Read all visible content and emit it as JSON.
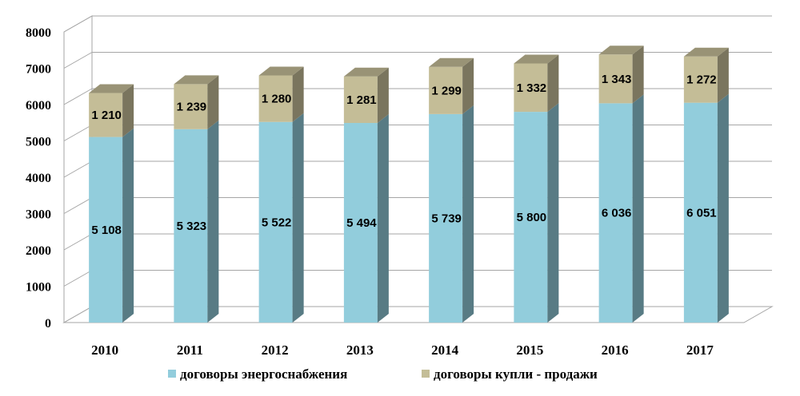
{
  "chart_data": {
    "type": "bar",
    "stacked": true,
    "three_d": true,
    "categories": [
      "2010",
      "2011",
      "2012",
      "2013",
      "2014",
      "2015",
      "2016",
      "2017"
    ],
    "series": [
      {
        "name": "договоры энергоснабжения",
        "values": [
          5108,
          5323,
          5522,
          5494,
          5739,
          5800,
          6036,
          6051
        ],
        "labels": [
          "5 108",
          "5 323",
          "5 522",
          "5 494",
          "5 739",
          "5 800",
          "6 036",
          "6 051"
        ],
        "color": "#92CDDC"
      },
      {
        "name": "договоры купли - продажи",
        "values": [
          1210,
          1239,
          1280,
          1281,
          1299,
          1332,
          1343,
          1272
        ],
        "labels": [
          "1 210",
          "1 239",
          "1 280",
          "1 281",
          "1 299",
          "1 332",
          "1 343",
          "1 272"
        ],
        "color": "#C4BD97"
      }
    ],
    "ylim": [
      0,
      8000
    ],
    "yticks": [
      "0",
      "1000",
      "2000",
      "3000",
      "4000",
      "5000",
      "6000",
      "7000",
      "8000"
    ],
    "grid": true,
    "legend_position": "bottom"
  }
}
